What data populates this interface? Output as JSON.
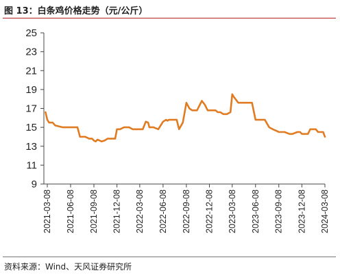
{
  "figure": {
    "title": "图 13：白条鸡价格走势（元/公斤）",
    "source": "资料来源：Wind、天风证券研究所"
  },
  "chart_data": {
    "type": "line",
    "title": "图 13：白条鸡价格走势（元/公斤）",
    "xlabel": "",
    "ylabel": "",
    "ylim": [
      9,
      25
    ],
    "yticks": [
      9,
      11,
      13,
      15,
      17,
      19,
      21,
      23,
      25
    ],
    "x_tick_labels": [
      "2021-03-08",
      "2021-06-08",
      "2021-09-08",
      "2021-12-08",
      "2022-03-08",
      "2022-06-08",
      "2022-09-08",
      "2022-12-08",
      "2023-03-08",
      "2023-06-08",
      "2023-09-08",
      "2023-12-08",
      "2024-03-08"
    ],
    "grid": false,
    "series_color": "#e07b22",
    "series": [
      {
        "x": [
          "2021-03-01",
          "2021-03-08",
          "2021-03-15",
          "2021-03-29",
          "2021-04-08",
          "2021-05-08",
          "2021-06-08",
          "2021-07-01",
          "2021-07-05",
          "2021-07-15",
          "2021-08-05",
          "2021-08-20",
          "2021-09-01",
          "2021-09-08",
          "2021-09-15",
          "2021-09-22",
          "2021-10-01",
          "2021-10-08",
          "2021-10-20",
          "2021-11-01",
          "2021-11-08",
          "2021-11-20",
          "2021-12-01",
          "2021-12-08",
          "2021-12-20",
          "2022-01-05",
          "2022-01-25",
          "2022-02-08",
          "2022-02-25",
          "2022-03-01",
          "2022-03-08",
          "2022-03-15",
          "2022-03-20",
          "2022-04-01",
          "2022-04-10",
          "2022-04-15",
          "2022-04-20",
          "2022-05-01",
          "2022-05-20",
          "2022-06-08",
          "2022-06-20",
          "2022-06-25",
          "2022-07-01",
          "2022-07-10",
          "2022-07-20",
          "2022-08-01",
          "2022-08-10",
          "2022-08-25",
          "2022-09-08",
          "2022-09-20",
          "2022-10-01",
          "2022-10-20",
          "2022-11-08",
          "2022-11-20",
          "2022-12-01",
          "2022-12-08",
          "2022-12-15",
          "2022-12-25",
          "2023-01-01",
          "2023-01-10",
          "2023-01-15",
          "2023-01-20",
          "2023-02-01",
          "2023-02-15",
          "2023-03-01",
          "2023-03-08",
          "2023-03-15",
          "2023-04-01",
          "2023-04-10",
          "2023-04-25",
          "2023-05-10",
          "2023-05-25",
          "2023-06-08",
          "2023-06-20",
          "2023-07-01",
          "2023-07-15",
          "2023-08-01",
          "2023-08-15",
          "2023-09-01",
          "2023-09-08",
          "2023-10-01",
          "2023-10-20",
          "2023-11-01",
          "2023-11-20",
          "2023-12-01",
          "2023-12-08",
          "2024-01-01",
          "2024-01-10",
          "2024-01-20",
          "2024-02-01",
          "2024-02-10",
          "2024-02-20",
          "2024-03-01",
          "2024-03-08"
        ],
        "values": [
          16.6,
          15.8,
          15.5,
          15.5,
          15.2,
          15.0,
          15.0,
          15.0,
          15.0,
          14.0,
          14.0,
          13.8,
          13.8,
          13.6,
          13.5,
          13.7,
          13.6,
          13.5,
          13.6,
          13.8,
          13.8,
          13.8,
          13.8,
          14.8,
          14.8,
          15.0,
          15.0,
          14.8,
          14.8,
          14.8,
          14.8,
          14.8,
          14.8,
          15.6,
          15.5,
          15.0,
          15.0,
          15.0,
          14.8,
          15.6,
          15.8,
          15.7,
          15.8,
          15.8,
          15.8,
          15.8,
          14.8,
          15.5,
          17.6,
          17.0,
          16.8,
          16.8,
          17.8,
          17.4,
          16.8,
          16.8,
          16.8,
          16.8,
          16.8,
          16.6,
          16.6,
          16.6,
          16.4,
          16.4,
          16.6,
          18.5,
          18.2,
          17.6,
          17.6,
          17.6,
          17.6,
          17.6,
          15.8,
          15.8,
          15.8,
          15.8,
          15.0,
          14.8,
          14.6,
          14.5,
          14.5,
          14.3,
          14.3,
          14.5,
          14.5,
          14.3,
          14.3,
          14.8,
          14.8,
          14.8,
          14.5,
          14.5,
          14.5,
          14.0
        ],
        "note": ""
      }
    ]
  }
}
